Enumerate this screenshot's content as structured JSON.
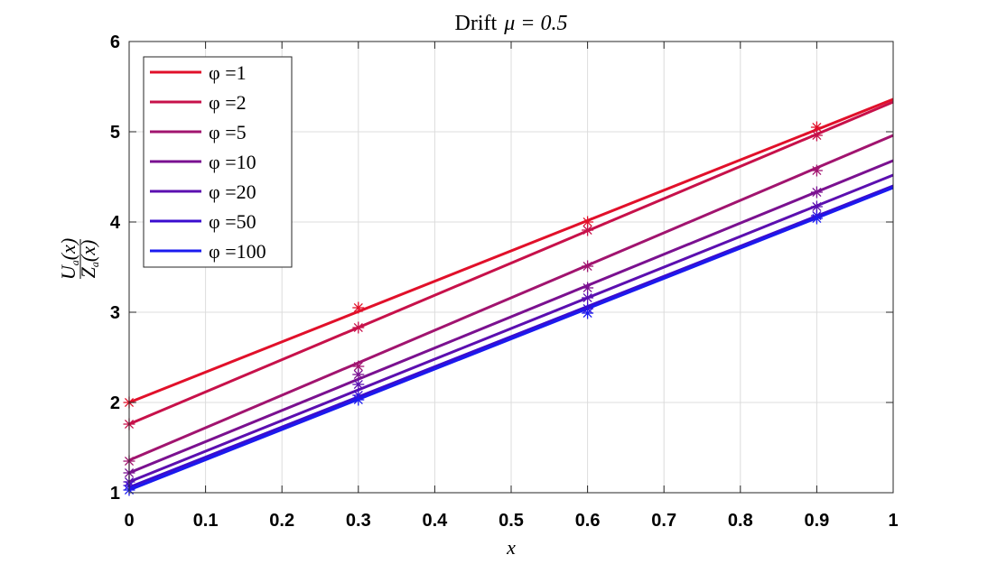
{
  "chart_data": {
    "type": "line",
    "title_prefix": "Drift",
    "title_math": "μ = 0.5",
    "xlabel": "x",
    "ylabel_num": "U",
    "ylabel_den": "Z",
    "ylabel_sub": "a",
    "ylabel_arg": "(x)",
    "xlim": [
      0,
      1
    ],
    "ylim": [
      1,
      6
    ],
    "xticks": [
      0,
      0.1,
      0.2,
      0.3,
      0.4,
      0.5,
      0.6,
      0.7,
      0.8,
      0.9,
      1
    ],
    "xtick_labels": [
      "0",
      "0.1",
      "0.2",
      "0.3",
      "0.4",
      "0.5",
      "0.6",
      "0.7",
      "0.8",
      "0.9",
      "1"
    ],
    "yticks": [
      1,
      2,
      3,
      4,
      5,
      6
    ],
    "ytick_labels": [
      "1",
      "2",
      "3",
      "4",
      "5",
      "6"
    ],
    "grid": true,
    "legend_position": "top-left",
    "marker": "asterisk",
    "marker_x": [
      0,
      0.3,
      0.6,
      0.9
    ],
    "series": [
      {
        "name": "φ =1",
        "color": "#e1102a",
        "line": [
          2.0,
          5.36
        ],
        "markers": [
          2.0,
          3.05,
          4.0,
          5.05
        ]
      },
      {
        "name": "φ =2",
        "color": "#c7114a",
        "line": [
          1.76,
          5.33
        ],
        "markers": [
          1.76,
          2.83,
          3.91,
          4.96
        ]
      },
      {
        "name": "φ =5",
        "color": "#a1146f",
        "line": [
          1.36,
          4.96
        ],
        "markers": [
          1.35,
          2.4,
          3.51,
          4.57
        ]
      },
      {
        "name": "φ =10",
        "color": "#7a1190",
        "line": [
          1.22,
          4.68
        ],
        "markers": [
          1.22,
          2.31,
          3.27,
          4.33
        ]
      },
      {
        "name": "φ =20",
        "color": "#5b0fb0",
        "line": [
          1.12,
          4.52
        ],
        "markers": [
          1.12,
          2.2,
          3.16,
          4.17
        ]
      },
      {
        "name": "φ =50",
        "color": "#3a0ccf",
        "line": [
          1.06,
          4.4
        ],
        "markers": [
          1.08,
          2.08,
          3.04,
          4.07
        ]
      },
      {
        "name": "φ =100",
        "color": "#1a1aef",
        "line": [
          1.03,
          4.38
        ],
        "markers": [
          1.03,
          2.03,
          2.99,
          4.04
        ]
      }
    ]
  }
}
